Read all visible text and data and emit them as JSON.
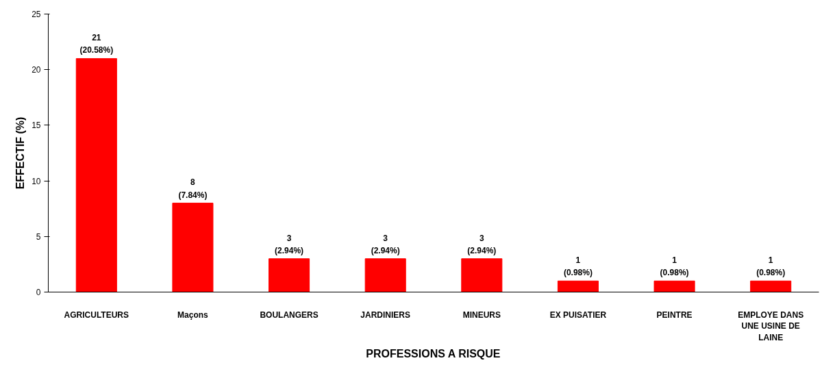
{
  "chart_data": {
    "type": "bar",
    "xlabel": "PROFESSIONS A RISQUE",
    "ylabel": "EFFECTIF (%)",
    "categories": [
      "AGRICULTEURS",
      "Maçons",
      "BOULANGERS",
      "JARDINIERS",
      "MINEURS",
      "EX PUISATIER",
      "PEINTRE",
      "EMPLOYE DANS UNE USINE DE LAINE"
    ],
    "values": [
      21,
      8,
      3,
      3,
      3,
      1,
      1,
      1
    ],
    "value_labels": [
      "21\n(20.58%)",
      "8\n(7.84%)",
      "3\n(2.94%)",
      "3\n(2.94%)",
      "3\n(2.94%)",
      "1\n(0.98%)",
      "1\n(0.98%)",
      "1\n(0.98%)"
    ],
    "color": "#ff0000",
    "ylim": [
      0,
      25
    ],
    "yticks": [
      0,
      5,
      10,
      15,
      20,
      25
    ],
    "grid": false
  }
}
